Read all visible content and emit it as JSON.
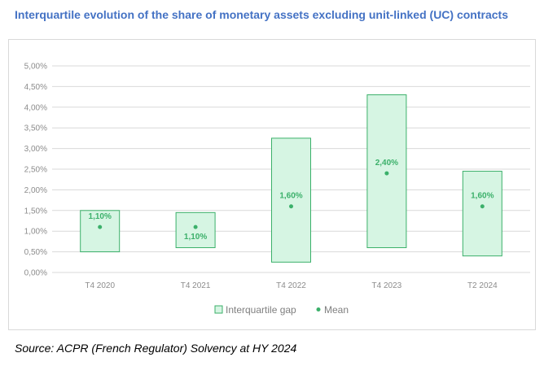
{
  "title": "Interquartile evolution of the share of monetary assets excluding unit-linked (UC) contracts",
  "source": "Source: ACPR (French Regulator) Solvency at HY 2024",
  "colors": {
    "title": "#4472c4",
    "box_fill": "#d6f5e3",
    "box_stroke": "#3bb06a",
    "mean": "#3bb06a",
    "grid": "#d9d9d9",
    "tick": "#8c8c8c"
  },
  "chart_data": {
    "type": "box-range",
    "categories": [
      "T4 2020",
      "T4 2021",
      "T4 2022",
      "T4 2023",
      "T2 2024"
    ],
    "series": [
      {
        "name": "Interquartile gap",
        "low": [
          0.5,
          0.6,
          0.25,
          0.6,
          0.4
        ],
        "high": [
          1.5,
          1.45,
          3.25,
          4.3,
          2.45
        ]
      },
      {
        "name": "Mean",
        "values": [
          1.1,
          1.1,
          1.6,
          2.4,
          1.6
        ],
        "labels": [
          "1,10%",
          "1,10%",
          "1,60%",
          "2,40%",
          "1,60%"
        ]
      }
    ],
    "ylim": [
      0,
      5
    ],
    "yticks": [
      "0,00%",
      "0,50%",
      "1,00%",
      "1,50%",
      "2,00%",
      "2,50%",
      "3,00%",
      "3,50%",
      "4,00%",
      "4,50%",
      "5,00%"
    ],
    "grid": true,
    "legend_position": "bottom"
  }
}
